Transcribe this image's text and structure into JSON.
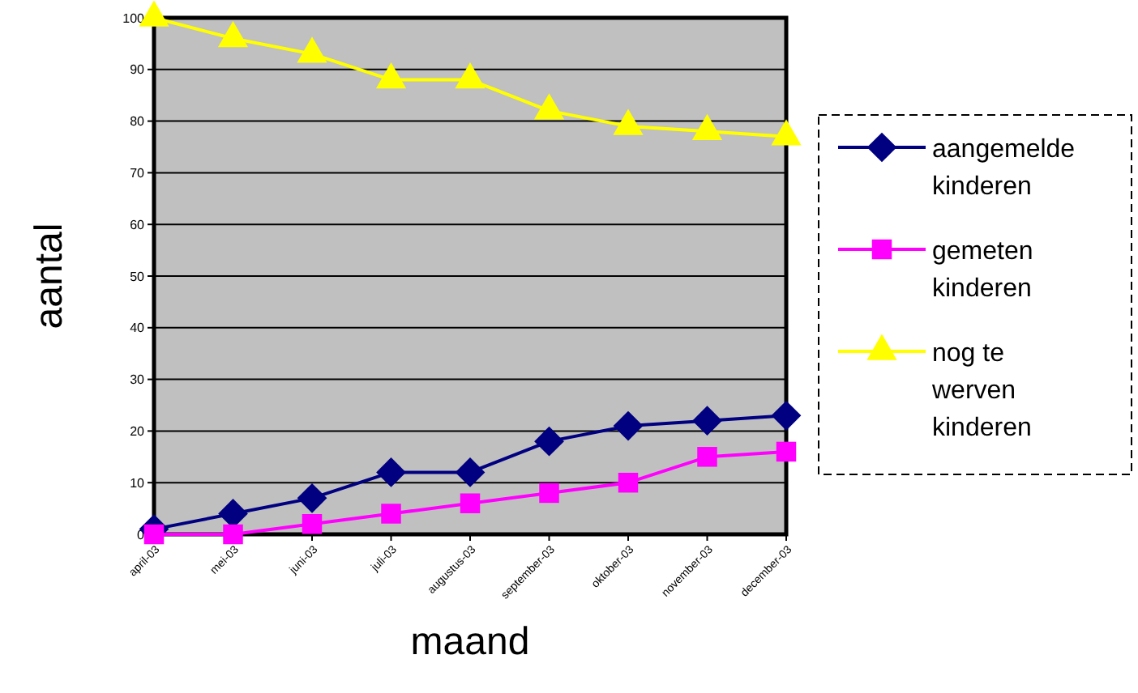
{
  "chart_data": {
    "type": "line",
    "xlabel": "maand",
    "ylabel": "aantal",
    "categories": [
      "april-03",
      "mei-03",
      "juni-03",
      "juli-03",
      "augustus-03",
      "september-03",
      "oktober-03",
      "november-03",
      "december-03"
    ],
    "series": [
      {
        "name": "aangemelde kinderen",
        "color": "#000080",
        "marker": "diamond",
        "values": [
          1,
          4,
          7,
          12,
          12,
          18,
          21,
          22,
          23
        ]
      },
      {
        "name": "gemeten kinderen",
        "color": "#ff00ff",
        "marker": "square",
        "values": [
          0,
          0,
          2,
          4,
          6,
          8,
          10,
          15,
          16
        ]
      },
      {
        "name": "nog te werven kinderen",
        "color": "#ffff00",
        "marker": "triangle",
        "values": [
          100,
          96,
          93,
          88,
          88,
          82,
          79,
          78,
          77
        ]
      }
    ],
    "ylim": [
      0,
      100
    ],
    "yticks": [
      0,
      10,
      20,
      30,
      40,
      50,
      60,
      70,
      80,
      90,
      100
    ],
    "grid": "y",
    "legend": "right",
    "line_style": "solid"
  }
}
